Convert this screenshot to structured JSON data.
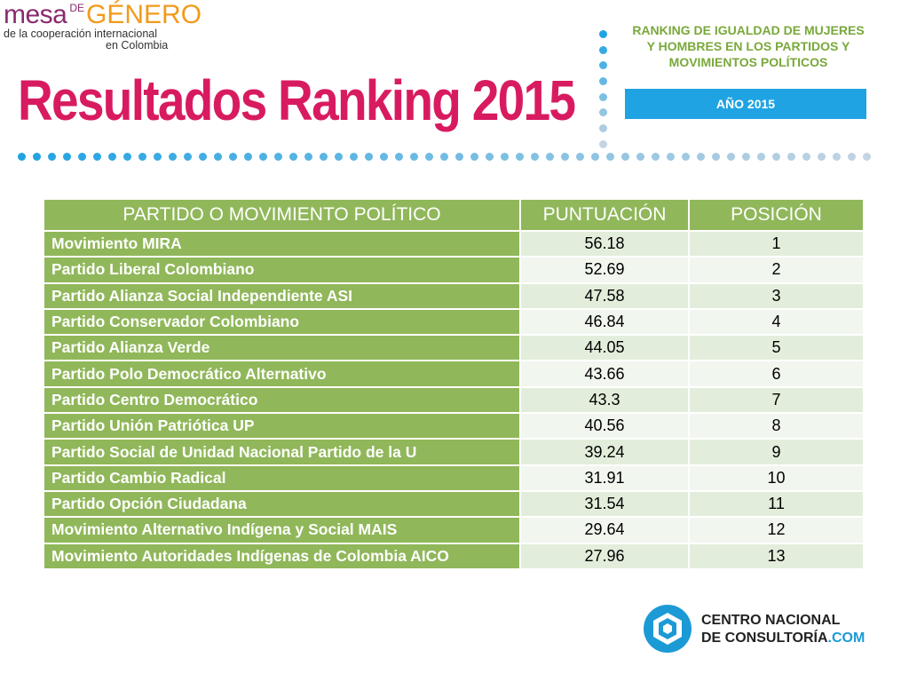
{
  "logo": {
    "mesa": "mesa",
    "de": "DE",
    "genero": "GÉNERO",
    "line2": "de la cooperación internacional",
    "line3": "en Colombia"
  },
  "title": "Resultados Ranking 2015",
  "subtitle": {
    "line1": "RANKING DE IGUALDAD DE MUJERES",
    "line2": "Y HOMBRES EN LOS PARTIDOS Y",
    "line3": "MOVIMIENTOS POLÍTICOS"
  },
  "year_box": "AÑO 2015",
  "table": {
    "headers": [
      "PARTIDO O MOVIMIENTO POLÍTICO",
      "PUNTUACIÓN",
      "POSICIÓN"
    ],
    "rows": [
      {
        "party": "Movimiento MIRA",
        "score": "56.18",
        "position": "1"
      },
      {
        "party": "Partido Liberal Colombiano",
        "score": "52.69",
        "position": "2"
      },
      {
        "party": "Partido Alianza Social Independiente ASI",
        "score": "47.58",
        "position": "3"
      },
      {
        "party": "Partido Conservador Colombiano",
        "score": "46.84",
        "position": "4"
      },
      {
        "party": "Partido Alianza Verde",
        "score": "44.05",
        "position": "5"
      },
      {
        "party": "Partido Polo Democrático Alternativo",
        "score": "43.66",
        "position": "6"
      },
      {
        "party": "Partido Centro Democrático",
        "score": "43.3",
        "position": "7"
      },
      {
        "party": "Partido Unión Patriótica UP",
        "score": "40.56",
        "position": "8"
      },
      {
        "party": "Partido Social de Unidad Nacional Partido de la U",
        "score": "39.24",
        "position": "9"
      },
      {
        "party": "Partido Cambio Radical",
        "score": "31.91",
        "position": "10"
      },
      {
        "party": "Partido Opción Ciudadana",
        "score": "31.54",
        "position": "11"
      },
      {
        "party": "Movimiento Alternativo Indígena y Social MAIS",
        "score": "29.64",
        "position": "12"
      },
      {
        "party": "Movimiento Autoridades Indígenas de Colombia AICO",
        "score": "27.96",
        "position": "13"
      }
    ]
  },
  "footer_logo": {
    "line1": "CENTRO NACIONAL",
    "line2_main": "DE CONSULTORÍA",
    "line2_suffix": ".COM"
  },
  "colors": {
    "title": "#d81b60",
    "table_green": "#90b75a",
    "subtitle_green": "#79a83a",
    "accent_blue": "#1fa3e3"
  }
}
